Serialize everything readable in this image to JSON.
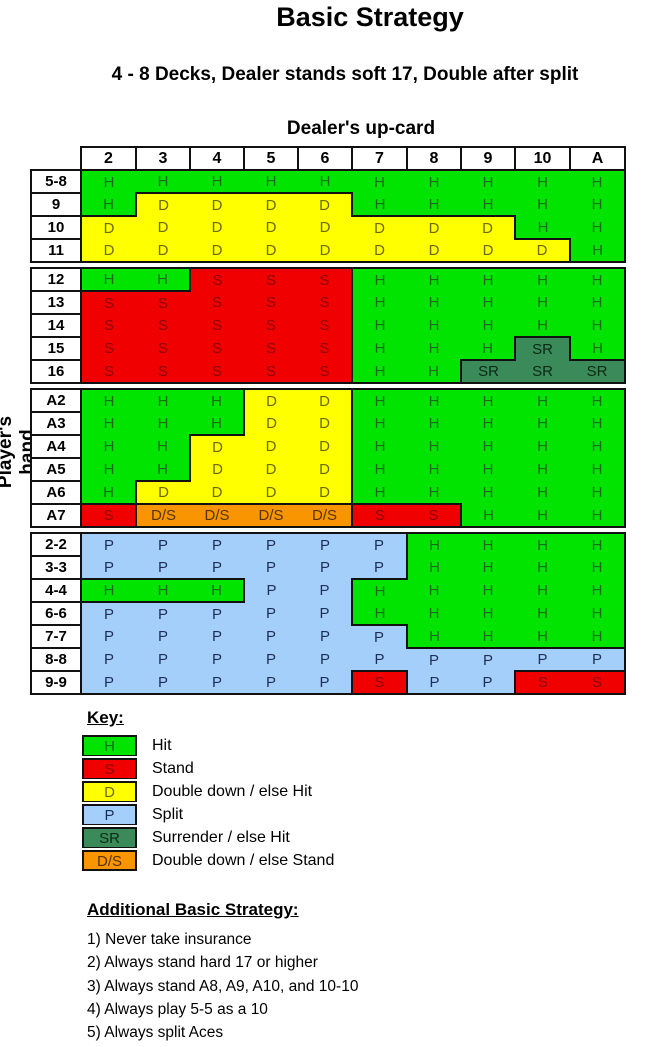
{
  "title": "Basic Strategy",
  "subtitle": "4 - 8  Decks,  Dealer stands soft 17, Double after split",
  "dealer_label": "Dealer's up-card",
  "player_label": "Player's hand",
  "colors": {
    "H": "#00e400",
    "S": "#f00000",
    "D": "#ffff00",
    "P": "#a4cffb",
    "SR": "#3a8a5a",
    "D/S": "#f89500"
  },
  "chart_data": {
    "type": "table",
    "title": "Basic Strategy",
    "subtitle": "4 - 8  Decks,  Dealer stands soft 17, Double after split",
    "xlabel": "Dealer's up-card",
    "ylabel": "Player's hand",
    "columns": [
      "2",
      "3",
      "4",
      "5",
      "6",
      "7",
      "8",
      "9",
      "10",
      "A"
    ],
    "sections": [
      {
        "name": "hard-low",
        "rows": [
          {
            "hand": "5-8",
            "actions": [
              "H",
              "H",
              "H",
              "H",
              "H",
              "H",
              "H",
              "H",
              "H",
              "H"
            ]
          },
          {
            "hand": "9",
            "actions": [
              "H",
              "D",
              "D",
              "D",
              "D",
              "H",
              "H",
              "H",
              "H",
              "H"
            ]
          },
          {
            "hand": "10",
            "actions": [
              "D",
              "D",
              "D",
              "D",
              "D",
              "D",
              "D",
              "D",
              "H",
              "H"
            ]
          },
          {
            "hand": "11",
            "actions": [
              "D",
              "D",
              "D",
              "D",
              "D",
              "D",
              "D",
              "D",
              "D",
              "H"
            ]
          }
        ]
      },
      {
        "name": "hard-high",
        "rows": [
          {
            "hand": "12",
            "actions": [
              "H",
              "H",
              "S",
              "S",
              "S",
              "H",
              "H",
              "H",
              "H",
              "H"
            ]
          },
          {
            "hand": "13",
            "actions": [
              "S",
              "S",
              "S",
              "S",
              "S",
              "H",
              "H",
              "H",
              "H",
              "H"
            ]
          },
          {
            "hand": "14",
            "actions": [
              "S",
              "S",
              "S",
              "S",
              "S",
              "H",
              "H",
              "H",
              "H",
              "H"
            ]
          },
          {
            "hand": "15",
            "actions": [
              "S",
              "S",
              "S",
              "S",
              "S",
              "H",
              "H",
              "H",
              "SR",
              "H"
            ]
          },
          {
            "hand": "16",
            "actions": [
              "S",
              "S",
              "S",
              "S",
              "S",
              "H",
              "H",
              "SR",
              "SR",
              "SR"
            ]
          }
        ]
      },
      {
        "name": "soft",
        "rows": [
          {
            "hand": "A2",
            "actions": [
              "H",
              "H",
              "H",
              "D",
              "D",
              "H",
              "H",
              "H",
              "H",
              "H"
            ]
          },
          {
            "hand": "A3",
            "actions": [
              "H",
              "H",
              "H",
              "D",
              "D",
              "H",
              "H",
              "H",
              "H",
              "H"
            ]
          },
          {
            "hand": "A4",
            "actions": [
              "H",
              "H",
              "D",
              "D",
              "D",
              "H",
              "H",
              "H",
              "H",
              "H"
            ]
          },
          {
            "hand": "A5",
            "actions": [
              "H",
              "H",
              "D",
              "D",
              "D",
              "H",
              "H",
              "H",
              "H",
              "H"
            ]
          },
          {
            "hand": "A6",
            "actions": [
              "H",
              "D",
              "D",
              "D",
              "D",
              "H",
              "H",
              "H",
              "H",
              "H"
            ]
          },
          {
            "hand": "A7",
            "actions": [
              "S",
              "D/S",
              "D/S",
              "D/S",
              "D/S",
              "S",
              "S",
              "H",
              "H",
              "H"
            ]
          }
        ]
      },
      {
        "name": "pairs",
        "rows": [
          {
            "hand": "2-2",
            "actions": [
              "P",
              "P",
              "P",
              "P",
              "P",
              "P",
              "H",
              "H",
              "H",
              "H"
            ]
          },
          {
            "hand": "3-3",
            "actions": [
              "P",
              "P",
              "P",
              "P",
              "P",
              "P",
              "H",
              "H",
              "H",
              "H"
            ]
          },
          {
            "hand": "4-4",
            "actions": [
              "H",
              "H",
              "H",
              "P",
              "P",
              "H",
              "H",
              "H",
              "H",
              "H"
            ]
          },
          {
            "hand": "6-6",
            "actions": [
              "P",
              "P",
              "P",
              "P",
              "P",
              "H",
              "H",
              "H",
              "H",
              "H"
            ]
          },
          {
            "hand": "7-7",
            "actions": [
              "P",
              "P",
              "P",
              "P",
              "P",
              "P",
              "H",
              "H",
              "H",
              "H"
            ]
          },
          {
            "hand": "8-8",
            "actions": [
              "P",
              "P",
              "P",
              "P",
              "P",
              "P",
              "P",
              "P",
              "P",
              "P"
            ]
          },
          {
            "hand": "9-9",
            "actions": [
              "P",
              "P",
              "P",
              "P",
              "P",
              "S",
              "P",
              "P",
              "S",
              "S"
            ]
          }
        ]
      }
    ]
  },
  "key": {
    "title": "Key:",
    "items": [
      {
        "code": "H",
        "label": "Hit"
      },
      {
        "code": "S",
        "label": "Stand"
      },
      {
        "code": "D",
        "label": "Double down / else Hit"
      },
      {
        "code": "P",
        "label": "Split"
      },
      {
        "code": "SR",
        "label": "Surrender / else Hit"
      },
      {
        "code": "D/S",
        "label": "Double down / else Stand"
      }
    ]
  },
  "additional": {
    "title": "Additional Basic Strategy:",
    "items": [
      "1) Never take insurance",
      "2) Always stand hard 17 or higher",
      "3) Always stand A8, A9, A10, and 10-10",
      "4) Always play 5-5 as a 10",
      "5) Always split Aces"
    ]
  }
}
